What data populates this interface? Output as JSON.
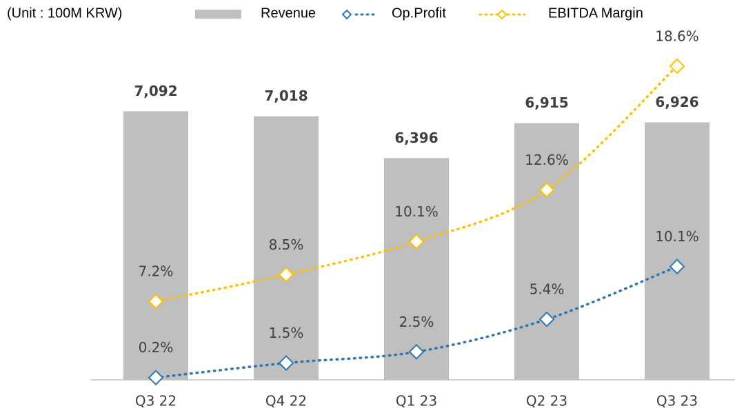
{
  "chart_data": {
    "type": "bar-line",
    "subtitle": "(Unit : 100M KRW)",
    "categories": [
      "Q3 22",
      "Q4 22",
      "Q1 23",
      "Q2 23",
      "Q3 23"
    ],
    "series": [
      {
        "name": "Revenue",
        "type": "bar",
        "color": "#bfbfbf",
        "values": [
          7092,
          7018,
          6396,
          6915,
          6926
        ],
        "value_labels": [
          "7,092",
          "7,018",
          "6,396",
          "6,915",
          "6,926"
        ]
      },
      {
        "name": "Op.Profit",
        "type": "line",
        "axis": "y2",
        "color": "#2e75b6",
        "values": [
          0.2,
          1.5,
          2.5,
          5.4,
          10.1
        ],
        "value_labels": [
          "0.2%",
          "1.5%",
          "2.5%",
          "5.4%",
          "10.1%"
        ]
      },
      {
        "name": "EBITDA Margin",
        "type": "line",
        "axis": "y3",
        "color": "#ffc000",
        "values": [
          7.2,
          8.5,
          10.1,
          12.6,
          18.6
        ],
        "value_labels": [
          "7.2%",
          "8.5%",
          "10.1%",
          "12.6%",
          "18.6%"
        ]
      }
    ],
    "ylim": [
      3100,
      8100
    ],
    "y2lim": [
      0,
      30
    ],
    "y3lim": [
      3.4,
      19.7
    ]
  }
}
